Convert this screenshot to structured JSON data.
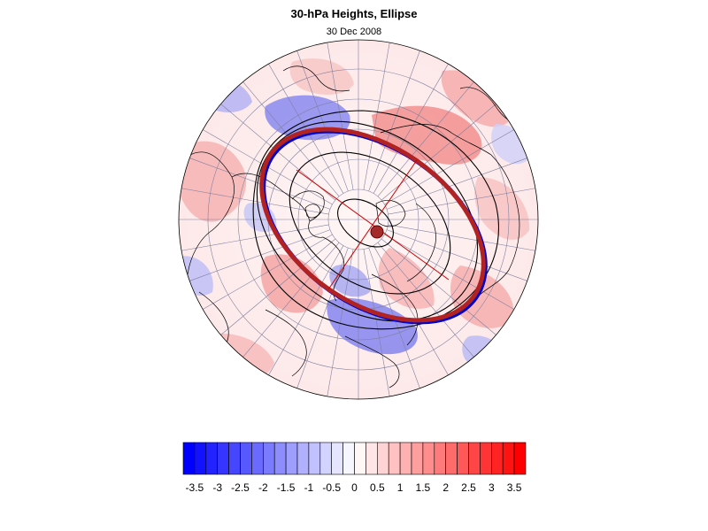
{
  "figure": {
    "title": "30-hPa Heights, Ellipse",
    "subtitle": "30 Dec 2008",
    "projection": "polar-stereographic",
    "hemisphere": "northern"
  },
  "colorbar": {
    "levels": [
      -3.75,
      -3.5,
      -3.25,
      -3,
      -2.75,
      -2.5,
      -2.25,
      -2,
      -1.75,
      -1.5,
      -1.25,
      -1,
      -0.75,
      -0.5,
      -0.25,
      0,
      0.25,
      0.5,
      0.75,
      1,
      1.25,
      1.5,
      1.75,
      2,
      2.25,
      2.5,
      2.75,
      3,
      3.25,
      3.5,
      3.75
    ],
    "tick_labels": [
      "-3.5",
      "-3",
      "-2.5",
      "-2",
      "-1.5",
      "-1",
      "-0.5",
      "0",
      "0.5",
      "1",
      "1.5",
      "2",
      "2.5",
      "3",
      "3.5"
    ],
    "neg_color": "#0000ff",
    "pos_color": "#ff0000",
    "mid_color": "#ffffff"
  },
  "overlay": {
    "ellipse_color": "#b22222",
    "ellipse_shadow_color": "#0000cc",
    "axis_color": "#cc0000",
    "center_marker_color": "#a52a2a",
    "contour_color": "#000000",
    "coast_color": "#000000",
    "grid_color": "#8080a0"
  },
  "colors": {
    "anomaly_blue": "#8a8af0",
    "anomaly_red": "#f29a9a",
    "light_blue": "#e6e6fb",
    "light_red": "#fde4e4"
  }
}
